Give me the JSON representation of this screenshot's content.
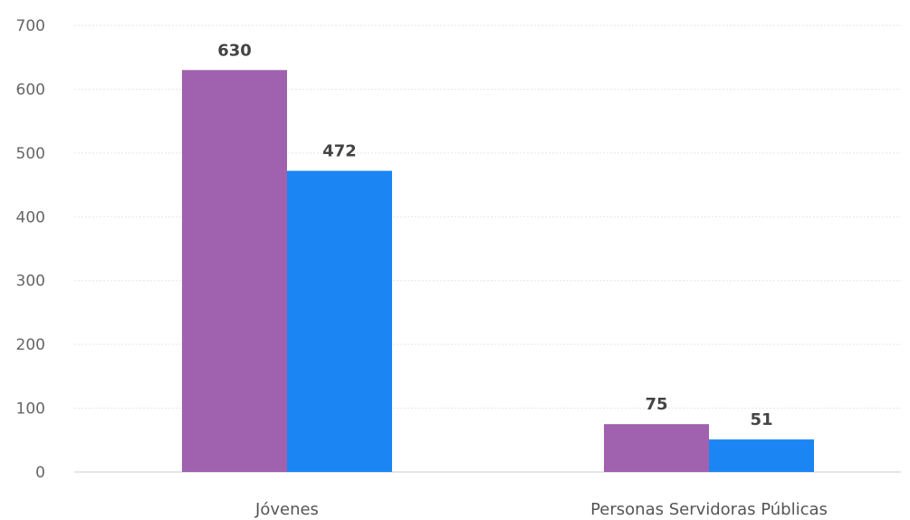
{
  "chart_data": {
    "type": "bar",
    "categories": [
      "Jóvenes",
      "Personas Servidoras Públicas"
    ],
    "series": [
      {
        "values": [
          630,
          75
        ],
        "color": "#A061AE"
      },
      {
        "values": [
          472,
          51
        ],
        "color": "#1B86F3"
      }
    ],
    "title": "",
    "xlabel": "",
    "ylabel": "",
    "ylim": [
      0,
      700
    ],
    "yticks": [
      0,
      100,
      200,
      300,
      400,
      500,
      600,
      700
    ],
    "grid": true,
    "data_labels": true
  },
  "colors": {
    "grid": "#e6e6e6",
    "axis": "#cccccc"
  }
}
